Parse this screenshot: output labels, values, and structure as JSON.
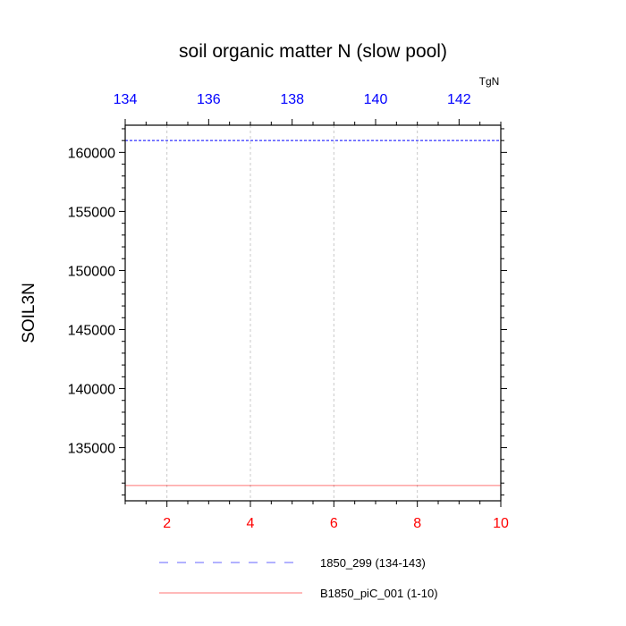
{
  "chart_data": {
    "type": "line",
    "title": "soil organic matter N (slow pool)",
    "ylabel": "SOIL3N",
    "units": "TgN",
    "ylim": [
      130500,
      162300
    ],
    "yticks": [
      135000,
      140000,
      145000,
      150000,
      155000,
      160000
    ],
    "ytick_labels": [
      "135000",
      "140000",
      "145000",
      "150000",
      "155000",
      "160000"
    ],
    "ygrid": false,
    "xgrid": true,
    "bottom_axis": {
      "xlim": [
        1,
        10
      ],
      "ticks": [
        2,
        4,
        6,
        8,
        10
      ],
      "tick_labels": [
        "2",
        "4",
        "6",
        "8",
        "10"
      ],
      "color": "#ff0000"
    },
    "top_axis": {
      "xlim": [
        134,
        143
      ],
      "ticks": [
        134,
        136,
        138,
        140,
        142
      ],
      "tick_labels": [
        "134",
        "136",
        "138",
        "140",
        "142"
      ],
      "color": "#0000ff"
    },
    "legend_position": "bottom",
    "series": [
      {
        "name": "1850_299 (134-143)",
        "axis": "top",
        "style": "dashed",
        "color": "#0000ff",
        "x": [
          134,
          135,
          136,
          137,
          138,
          139,
          140,
          141,
          142,
          143
        ],
        "values": [
          161000,
          161000,
          161000,
          161000,
          161000,
          161000,
          161000,
          161000,
          161000,
          161000
        ]
      },
      {
        "name": "B1850_piC_001 (1-10)",
        "axis": "bottom",
        "style": "solid",
        "color": "#ff0000",
        "x": [
          1,
          2,
          3,
          4,
          5,
          6,
          7,
          8,
          9,
          10
        ],
        "values": [
          131800,
          131800,
          131800,
          131800,
          131800,
          131800,
          131800,
          131800,
          131800,
          131800
        ]
      }
    ]
  }
}
